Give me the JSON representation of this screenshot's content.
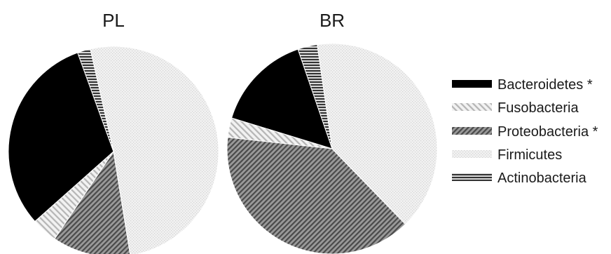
{
  "chart_data": [
    {
      "type": "pie",
      "title": "PL",
      "categories": [
        "Bacteroidetes *",
        "Fusobacteria",
        "Proteobacteria *",
        "Firmicutes",
        "Actinobacteria"
      ],
      "values": [
        31,
        4,
        12,
        51,
        2
      ]
    },
    {
      "type": "pie",
      "title": "BR",
      "categories": [
        "Bacteroidetes *",
        "Fusobacteria",
        "Proteobacteria *",
        "Firmicutes",
        "Actinobacteria"
      ],
      "values": [
        15,
        3,
        39,
        40,
        3
      ]
    }
  ],
  "legend": {
    "placement": "right",
    "items": [
      {
        "label": "Bacteroidetes *",
        "pattern": "solid-black"
      },
      {
        "label": "Fusobacteria",
        "pattern": "light-diagonal"
      },
      {
        "label": "Proteobacteria *",
        "pattern": "dark-diagonal"
      },
      {
        "label": "Firmicutes",
        "pattern": "light-dots"
      },
      {
        "label": "Actinobacteria",
        "pattern": "horizontal-stripes"
      }
    ]
  },
  "colors": {
    "bacteroidetes": "#000000",
    "fusobacteria": "#c8c8c8",
    "proteobacteria": "#6e6e6e",
    "firmicutes": "#e6e6e6",
    "actinobacteria": "#3c3c3c"
  }
}
